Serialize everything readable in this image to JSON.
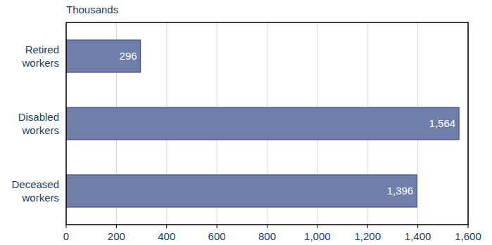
{
  "chart_data": {
    "type": "bar",
    "orientation": "horizontal",
    "xlabel": "Thousands",
    "categories": [
      "Retired workers",
      "Disabled workers",
      "Deceased workers"
    ],
    "values": [
      296,
      1564,
      1396
    ],
    "value_labels": [
      "296",
      "1,564",
      "1,396"
    ],
    "data_labels": true,
    "color": "#6f7fa9",
    "xlim": [
      0,
      1600
    ],
    "xticks": [
      0,
      200,
      400,
      600,
      800,
      {
        "value": 1000,
        "label": "1,000"
      },
      {
        "value": 1200,
        "label": "1,200"
      },
      {
        "value": 1400,
        "label": "1,400"
      },
      {
        "value": 1600,
        "label": "1,600"
      }
    ],
    "grid": true
  }
}
